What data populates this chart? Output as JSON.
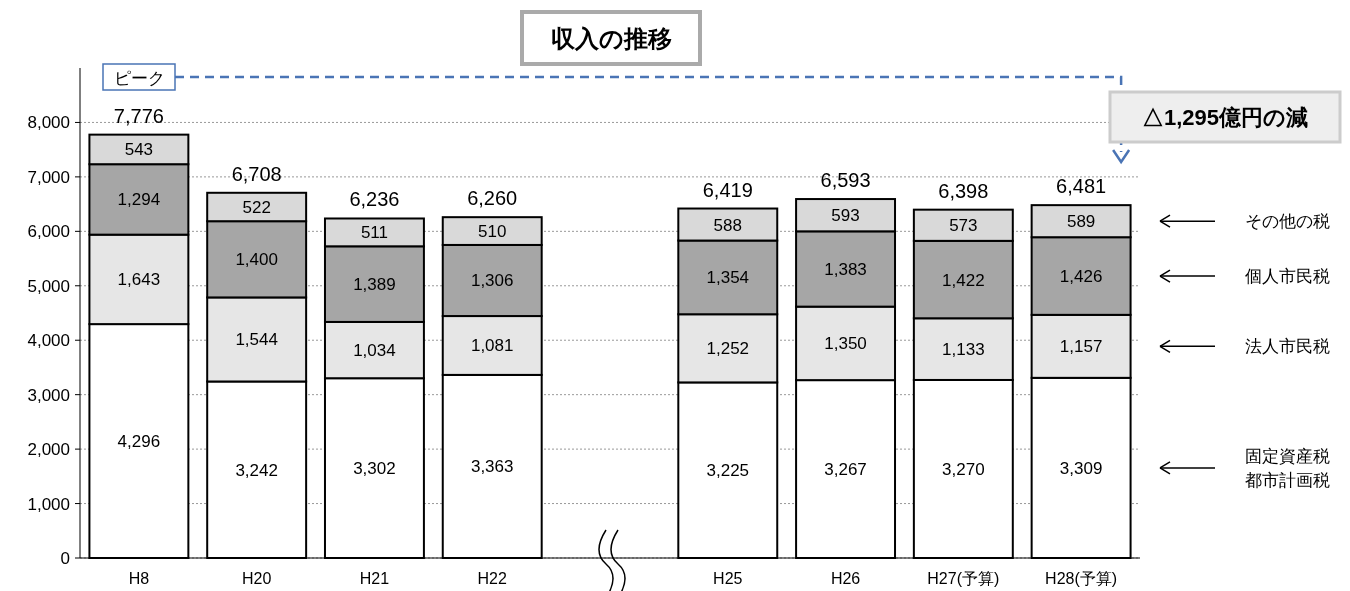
{
  "chart_data": {
    "type": "bar",
    "title": "収入の推移",
    "stacked": true,
    "legend": "right",
    "grid": "y",
    "categories": [
      "H8",
      "H20",
      "H21",
      "H22",
      null,
      "H25",
      "H26",
      "H27(予算)",
      "H28(予算)"
    ],
    "series": [
      {
        "name": "固定資産税都市計画税",
        "color": "#ffffff",
        "values": [
          4296,
          3242,
          3302,
          3363,
          null,
          3225,
          3267,
          3270,
          3309
        ],
        "value_labels": [
          "4,296",
          "3,242",
          "3,302",
          "3,363",
          null,
          "3,225",
          "3,267",
          "3,270",
          "3,309"
        ]
      },
      {
        "name": "法人市民税",
        "color": "#e6e6e6",
        "values": [
          1643,
          1544,
          1034,
          1081,
          null,
          1252,
          1350,
          1133,
          1157
        ],
        "value_labels": [
          "1,643",
          "1,544",
          "1,034",
          "1,081",
          null,
          "1,252",
          "1,350",
          "1,133",
          "1,157"
        ]
      },
      {
        "name": "個人市民税",
        "color": "#a6a6a6",
        "values": [
          1294,
          1400,
          1389,
          1306,
          null,
          1354,
          1383,
          1422,
          1426
        ],
        "value_labels": [
          "1,294",
          "1,400",
          "1,389",
          "1,306",
          null,
          "1,354",
          "1,383",
          "1,422",
          "1,426"
        ]
      },
      {
        "name": "その他の税",
        "color": "#d9d9d9",
        "values": [
          543,
          522,
          511,
          510,
          null,
          588,
          593,
          573,
          589
        ],
        "value_labels": [
          "543",
          "522",
          "511",
          "510",
          null,
          "588",
          "593",
          "573",
          "589"
        ]
      }
    ],
    "totals": [
      "7,776",
      "6,708",
      "6,236",
      "6,260",
      null,
      "6,419",
      "6,593",
      "6,398",
      "6,481"
    ],
    "ylim": [
      0,
      9000
    ],
    "yticks": [
      {
        "value": 0,
        "label": "0"
      },
      {
        "value": 1000,
        "label": "1,000"
      },
      {
        "value": 2000,
        "label": "2,000"
      },
      {
        "value": 3000,
        "label": "3,000"
      },
      {
        "value": 4000,
        "label": "4,000"
      },
      {
        "value": 5000,
        "label": "5,000"
      },
      {
        "value": 6000,
        "label": "6,000"
      },
      {
        "value": 7000,
        "label": "7,000"
      },
      {
        "value": 8000,
        "label": "8,000"
      }
    ],
    "annotations": [
      "ピーク",
      "△1,295億円の減"
    ]
  }
}
